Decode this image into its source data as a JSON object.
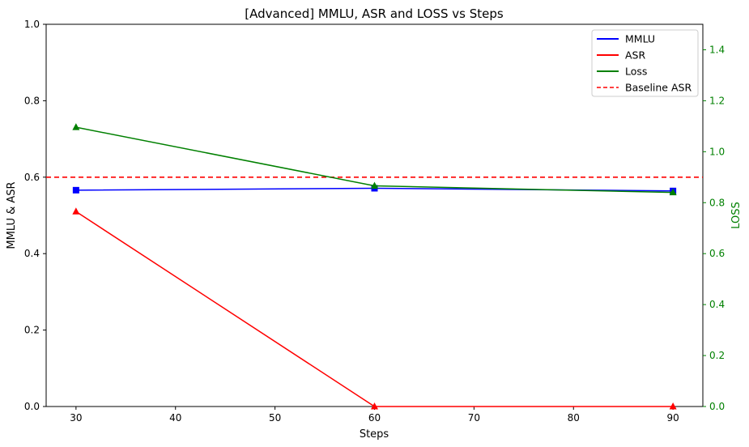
{
  "chart_data": {
    "type": "line",
    "title": "[Advanced] MMLU, ASR and LOSS vs Steps",
    "xlabel": "Steps",
    "ylabel": "MMLU & ASR",
    "ylabel_right": "LOSS",
    "x": [
      30,
      60,
      90
    ],
    "xlim": [
      27,
      93
    ],
    "ylim": [
      0,
      1.0
    ],
    "ylim_right": [
      0,
      1.5
    ],
    "x_ticks": [
      "30",
      "40",
      "50",
      "60",
      "70",
      "80",
      "90"
    ],
    "y_ticks": [
      "0.0",
      "0.2",
      "0.4",
      "0.6",
      "0.8",
      "1.0"
    ],
    "y_ticks_right": [
      "0.0",
      "0.2",
      "0.4",
      "0.6",
      "0.8",
      "1.0",
      "1.2",
      "1.4"
    ],
    "series": [
      {
        "name": "MMLU",
        "axis": "left",
        "values": [
          0.566,
          0.571,
          0.564
        ],
        "color": "#0000ff",
        "marker": "square"
      },
      {
        "name": "ASR",
        "axis": "left",
        "values": [
          0.51,
          0.0,
          0.0
        ],
        "color": "#ff0000",
        "marker": "triangle"
      },
      {
        "name": "Loss",
        "axis": "right",
        "values": [
          1.096,
          0.866,
          0.84
        ],
        "color": "#008000",
        "marker": "triangle"
      }
    ],
    "baseline": {
      "name": "Baseline ASR",
      "value": 0.6,
      "color": "#ff0000",
      "style": "dashed",
      "axis": "left"
    },
    "legend": {
      "placement": "upper-right"
    },
    "grid": false
  }
}
